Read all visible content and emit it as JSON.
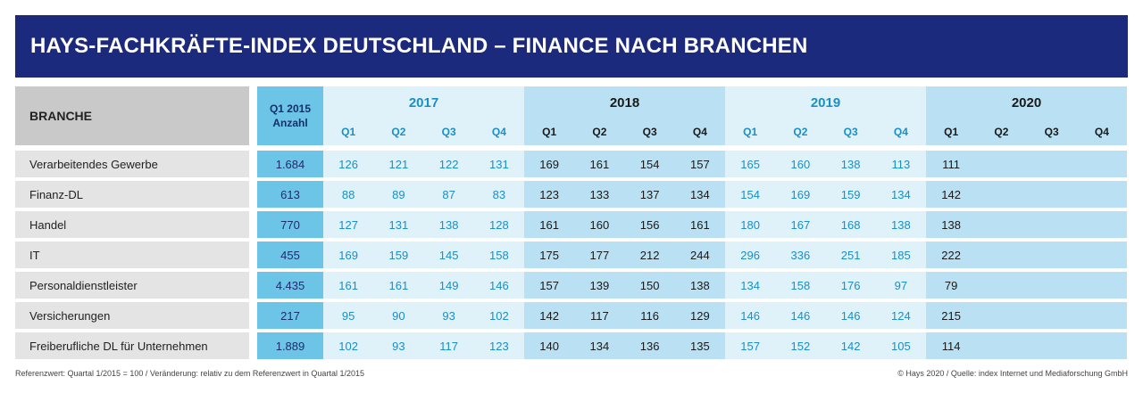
{
  "title": "HAYS-FACHKRÄFTE-INDEX DEUTSCHLAND – FINANCE NACH BRANCHEN",
  "colors": {
    "banner": "#1b2a7d",
    "branche_bg": "#e4e4e4",
    "branche_head_bg": "#c9c9c9",
    "q2015_bg": "#6cc4e6",
    "year_light_bg": "#dff1f9",
    "year_dark_bg": "#b9e0f3",
    "cyan_text": "#1a8fc7",
    "dark_text": "#1a1a1a"
  },
  "chart_data": {
    "type": "table",
    "branche_header": "BRANCHE",
    "ref_header": [
      "Q1 2015",
      "Anzahl"
    ],
    "years": [
      {
        "year": "2017",
        "style": "light"
      },
      {
        "year": "2018",
        "style": "dark"
      },
      {
        "year": "2019",
        "style": "light"
      },
      {
        "year": "2020",
        "style": "dark"
      }
    ],
    "quarters": [
      "Q1",
      "Q2",
      "Q3",
      "Q4"
    ],
    "rows": [
      {
        "branche": "Verarbeitendes Gewerbe",
        "q1_2015": "1.684",
        "values": [
          "126",
          "121",
          "122",
          "131",
          "169",
          "161",
          "154",
          "157",
          "165",
          "160",
          "138",
          "113",
          "111",
          "",
          "",
          ""
        ]
      },
      {
        "branche": "Finanz-DL",
        "q1_2015": "613",
        "values": [
          "88",
          "89",
          "87",
          "83",
          "123",
          "133",
          "137",
          "134",
          "154",
          "169",
          "159",
          "134",
          "142",
          "",
          "",
          ""
        ]
      },
      {
        "branche": "Handel",
        "q1_2015": "770",
        "values": [
          "127",
          "131",
          "138",
          "128",
          "161",
          "160",
          "156",
          "161",
          "180",
          "167",
          "168",
          "138",
          "138",
          "",
          "",
          ""
        ]
      },
      {
        "branche": "IT",
        "q1_2015": "455",
        "values": [
          "169",
          "159",
          "145",
          "158",
          "175",
          "177",
          "212",
          "244",
          "296",
          "336",
          "251",
          "185",
          "222",
          "",
          "",
          ""
        ]
      },
      {
        "branche": "Personaldienstleister",
        "q1_2015": "4.435",
        "values": [
          "161",
          "161",
          "149",
          "146",
          "157",
          "139",
          "150",
          "138",
          "134",
          "158",
          "176",
          "97",
          "79",
          "",
          "",
          ""
        ]
      },
      {
        "branche": "Versicherungen",
        "q1_2015": "217",
        "values": [
          "95",
          "90",
          "93",
          "102",
          "142",
          "117",
          "116",
          "129",
          "146",
          "146",
          "146",
          "124",
          "215",
          "",
          "",
          ""
        ]
      },
      {
        "branche": "Freiberufliche DL für Unternehmen",
        "q1_2015": "1.889",
        "values": [
          "102",
          "93",
          "117",
          "123",
          "140",
          "134",
          "136",
          "135",
          "157",
          "152",
          "142",
          "105",
          "114",
          "",
          "",
          ""
        ]
      }
    ]
  },
  "footnote_left": "Referenzwert: Quartal 1/2015 = 100 / Veränderung: relativ zu dem Referenzwert in Quartal 1/2015",
  "footnote_right": "© Hays 2020 / Quelle: index Internet und Mediaforschung GmbH"
}
